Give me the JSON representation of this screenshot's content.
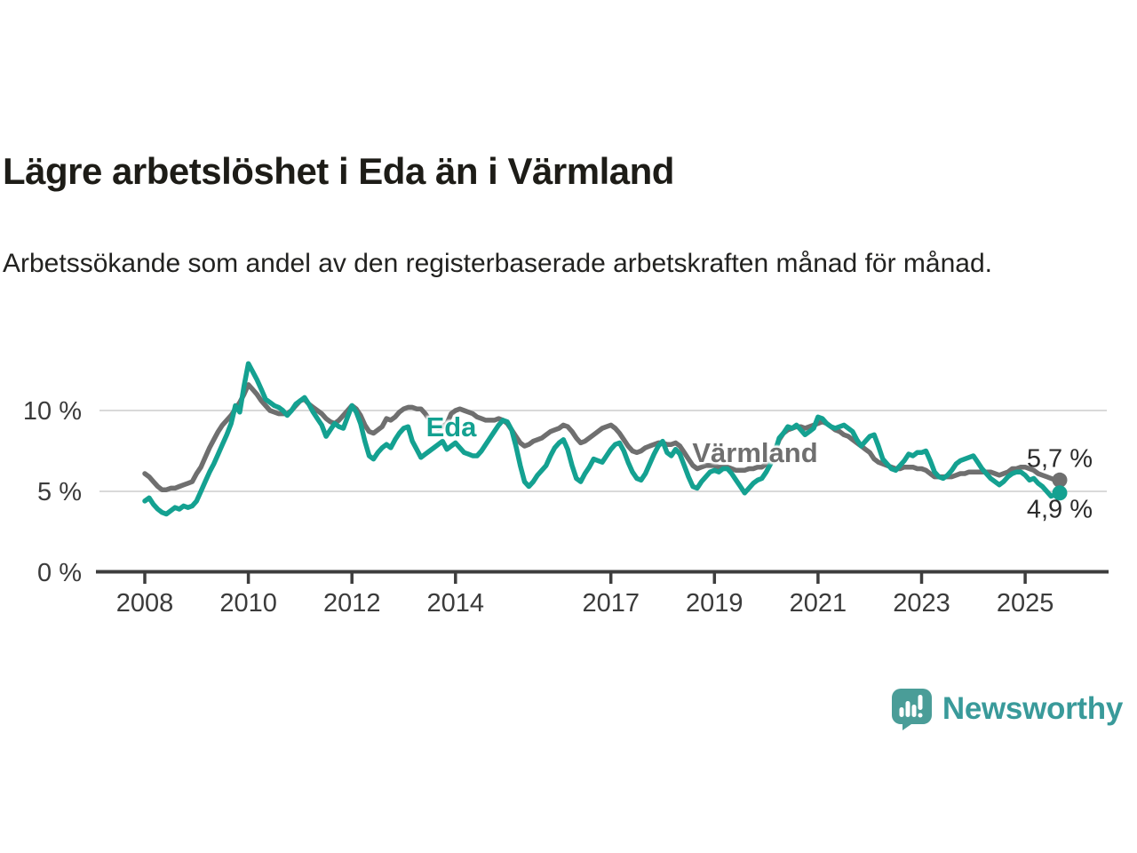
{
  "header": {
    "title": "Lägre arbetslöshet i Eda än i Värmland",
    "subtitle": "Arbetssökande som andel av den registerbaserade arbetskraften månad för månad."
  },
  "style": {
    "background": "#ffffff",
    "grid_color": "#d9d9d9",
    "axis_color": "#3d3d3d",
    "axis_text_color": "#3b3b3b",
    "annotation_text_color": "#2c2c2c",
    "eda_color": "#14a191",
    "varmland_color": "#6f6f6f",
    "logo_color": "#399a9a",
    "logo_icon_color": "#4a9d98"
  },
  "chart_data": {
    "type": "line",
    "title": "Lägre arbetslöshet i Eda än i Värmland",
    "subtitle": "Arbetssökande som andel av den registerbaserade arbetskraften månad för månad.",
    "unit": "%",
    "frequency": "monthly",
    "x_start": "2008-01",
    "x_end": "2025-09",
    "ylim": [
      0,
      13.5
    ],
    "grid": "horizontal",
    "legend_position": "inline-labels",
    "y_axis": {
      "ticks": [
        {
          "value": 0,
          "label": "0 %"
        },
        {
          "value": 5,
          "label": "5 %"
        },
        {
          "value": 10,
          "label": "10 %"
        }
      ]
    },
    "x_axis": {
      "ticks": [
        2008,
        2010,
        2012,
        2014,
        2017,
        2019,
        2021,
        2023,
        2025
      ]
    },
    "series": [
      {
        "id": "varmland",
        "name": "Värmland",
        "color": "#6f6f6f",
        "end_label": "5,7 %",
        "end_value": 5.7,
        "values": [
          6.1,
          5.9,
          5.6,
          5.3,
          5.1,
          5.1,
          5.2,
          5.2,
          5.3,
          5.4,
          5.5,
          5.6,
          6.1,
          6.5,
          7.1,
          7.7,
          8.2,
          8.7,
          9.1,
          9.4,
          9.7,
          10.1,
          10.5,
          11.0,
          11.6,
          11.3,
          11.0,
          10.6,
          10.3,
          10.0,
          9.9,
          9.8,
          9.8,
          9.8,
          10.0,
          10.3,
          10.6,
          10.7,
          10.4,
          10.2,
          10.0,
          9.8,
          9.5,
          9.3,
          9.2,
          9.4,
          9.7,
          10.0,
          10.3,
          10.1,
          9.7,
          9.1,
          8.7,
          8.6,
          8.8,
          9.0,
          9.5,
          9.4,
          9.6,
          9.9,
          10.1,
          10.2,
          10.2,
          10.1,
          10.1,
          9.8,
          9.4,
          9.0,
          8.9,
          9.0,
          9.2,
          9.8,
          10.0,
          10.1,
          10.0,
          9.9,
          9.8,
          9.6,
          9.5,
          9.4,
          9.4,
          9.4,
          9.5,
          9.4,
          9.2,
          8.8,
          8.4,
          8.0,
          7.8,
          7.9,
          8.1,
          8.2,
          8.3,
          8.5,
          8.7,
          8.8,
          8.9,
          9.1,
          9.0,
          8.7,
          8.3,
          8.0,
          8.1,
          8.3,
          8.5,
          8.7,
          8.9,
          9.0,
          9.1,
          8.9,
          8.6,
          8.2,
          7.8,
          7.5,
          7.4,
          7.5,
          7.7,
          7.8,
          7.9,
          8.0,
          8.0,
          7.9,
          7.9,
          8.0,
          7.8,
          7.4,
          7.0,
          6.6,
          6.4,
          6.5,
          6.6,
          6.6,
          6.6,
          6.5,
          6.5,
          6.5,
          6.4,
          6.3,
          6.3,
          6.3,
          6.4,
          6.4,
          6.5,
          6.5,
          6.7,
          7.0,
          7.5,
          8.2,
          8.6,
          8.8,
          8.9,
          9.0,
          9.0,
          8.9,
          9.0,
          9.1,
          9.2,
          9.3,
          9.2,
          9.0,
          8.8,
          8.7,
          8.5,
          8.4,
          8.2,
          8.0,
          7.8,
          7.6,
          7.4,
          7.0,
          6.8,
          6.7,
          6.6,
          6.5,
          6.4,
          6.4,
          6.5,
          6.5,
          6.5,
          6.4,
          6.4,
          6.3,
          6.1,
          5.9,
          5.9,
          5.9,
          5.9,
          5.9,
          6.0,
          6.1,
          6.1,
          6.2,
          6.2,
          6.2,
          6.2,
          6.2,
          6.2,
          6.1,
          6.0,
          6.1,
          6.2,
          6.4,
          6.4,
          6.5,
          6.5,
          6.4,
          6.3,
          6.1,
          6.0,
          5.9,
          5.8,
          5.7,
          5.7
        ]
      },
      {
        "id": "eda",
        "name": "Eda",
        "color": "#14a191",
        "end_label": "4,9 %",
        "end_value": 4.9,
        "values": [
          4.4,
          4.6,
          4.2,
          3.9,
          3.7,
          3.6,
          3.8,
          4.0,
          3.9,
          4.1,
          4.0,
          4.1,
          4.4,
          5.0,
          5.6,
          6.2,
          6.7,
          7.3,
          7.9,
          8.5,
          9.2,
          10.3,
          9.9,
          11.5,
          12.9,
          12.4,
          11.9,
          11.3,
          10.7,
          10.5,
          10.3,
          10.2,
          10.0,
          9.7,
          10.0,
          10.4,
          10.6,
          10.8,
          10.4,
          9.9,
          9.5,
          9.1,
          8.4,
          8.8,
          9.2,
          9.0,
          8.9,
          9.6,
          10.3,
          9.9,
          9.2,
          8.1,
          7.2,
          7.0,
          7.4,
          7.7,
          7.9,
          7.7,
          8.2,
          8.6,
          8.9,
          9.0,
          8.1,
          7.6,
          7.1,
          7.3,
          7.5,
          7.7,
          7.9,
          8.1,
          7.6,
          7.8,
          8.0,
          7.7,
          7.4,
          7.3,
          7.2,
          7.2,
          7.5,
          7.9,
          8.3,
          8.7,
          9.1,
          9.4,
          9.3,
          8.8,
          7.8,
          6.6,
          5.6,
          5.3,
          5.6,
          6.0,
          6.3,
          6.6,
          7.2,
          7.7,
          8.0,
          8.2,
          7.6,
          6.6,
          5.8,
          5.6,
          6.1,
          6.5,
          7.0,
          6.9,
          6.8,
          7.2,
          7.6,
          7.9,
          8.0,
          7.5,
          6.8,
          6.2,
          5.8,
          5.7,
          6.1,
          6.7,
          7.3,
          7.8,
          8.1,
          7.4,
          7.2,
          7.6,
          7.3,
          6.6,
          5.9,
          5.3,
          5.2,
          5.6,
          5.9,
          6.2,
          6.3,
          6.2,
          6.4,
          6.4,
          6.1,
          5.7,
          5.3,
          4.9,
          5.2,
          5.5,
          5.7,
          5.8,
          6.2,
          6.7,
          7.4,
          8.3,
          8.6,
          9.0,
          8.9,
          9.1,
          8.8,
          8.5,
          8.7,
          8.9,
          9.6,
          9.5,
          9.2,
          9.0,
          8.9,
          9.0,
          9.1,
          8.9,
          8.7,
          8.2,
          7.8,
          8.1,
          8.4,
          8.5,
          7.8,
          7.0,
          6.7,
          6.4,
          6.3,
          6.6,
          6.9,
          7.3,
          7.2,
          7.4,
          7.4,
          7.5,
          6.9,
          6.2,
          5.9,
          5.8,
          6.0,
          6.3,
          6.7,
          6.9,
          7.0,
          7.1,
          7.2,
          6.8,
          6.4,
          6.1,
          5.8,
          5.6,
          5.4,
          5.6,
          5.9,
          6.1,
          6.2,
          6.2,
          6.0,
          5.7,
          5.8,
          5.5,
          5.3,
          5.0,
          4.7,
          4.8,
          4.9
        ]
      }
    ]
  },
  "logo": {
    "text": "Newsworthy",
    "icon": "newsworthy-bubble-chart-icon"
  }
}
